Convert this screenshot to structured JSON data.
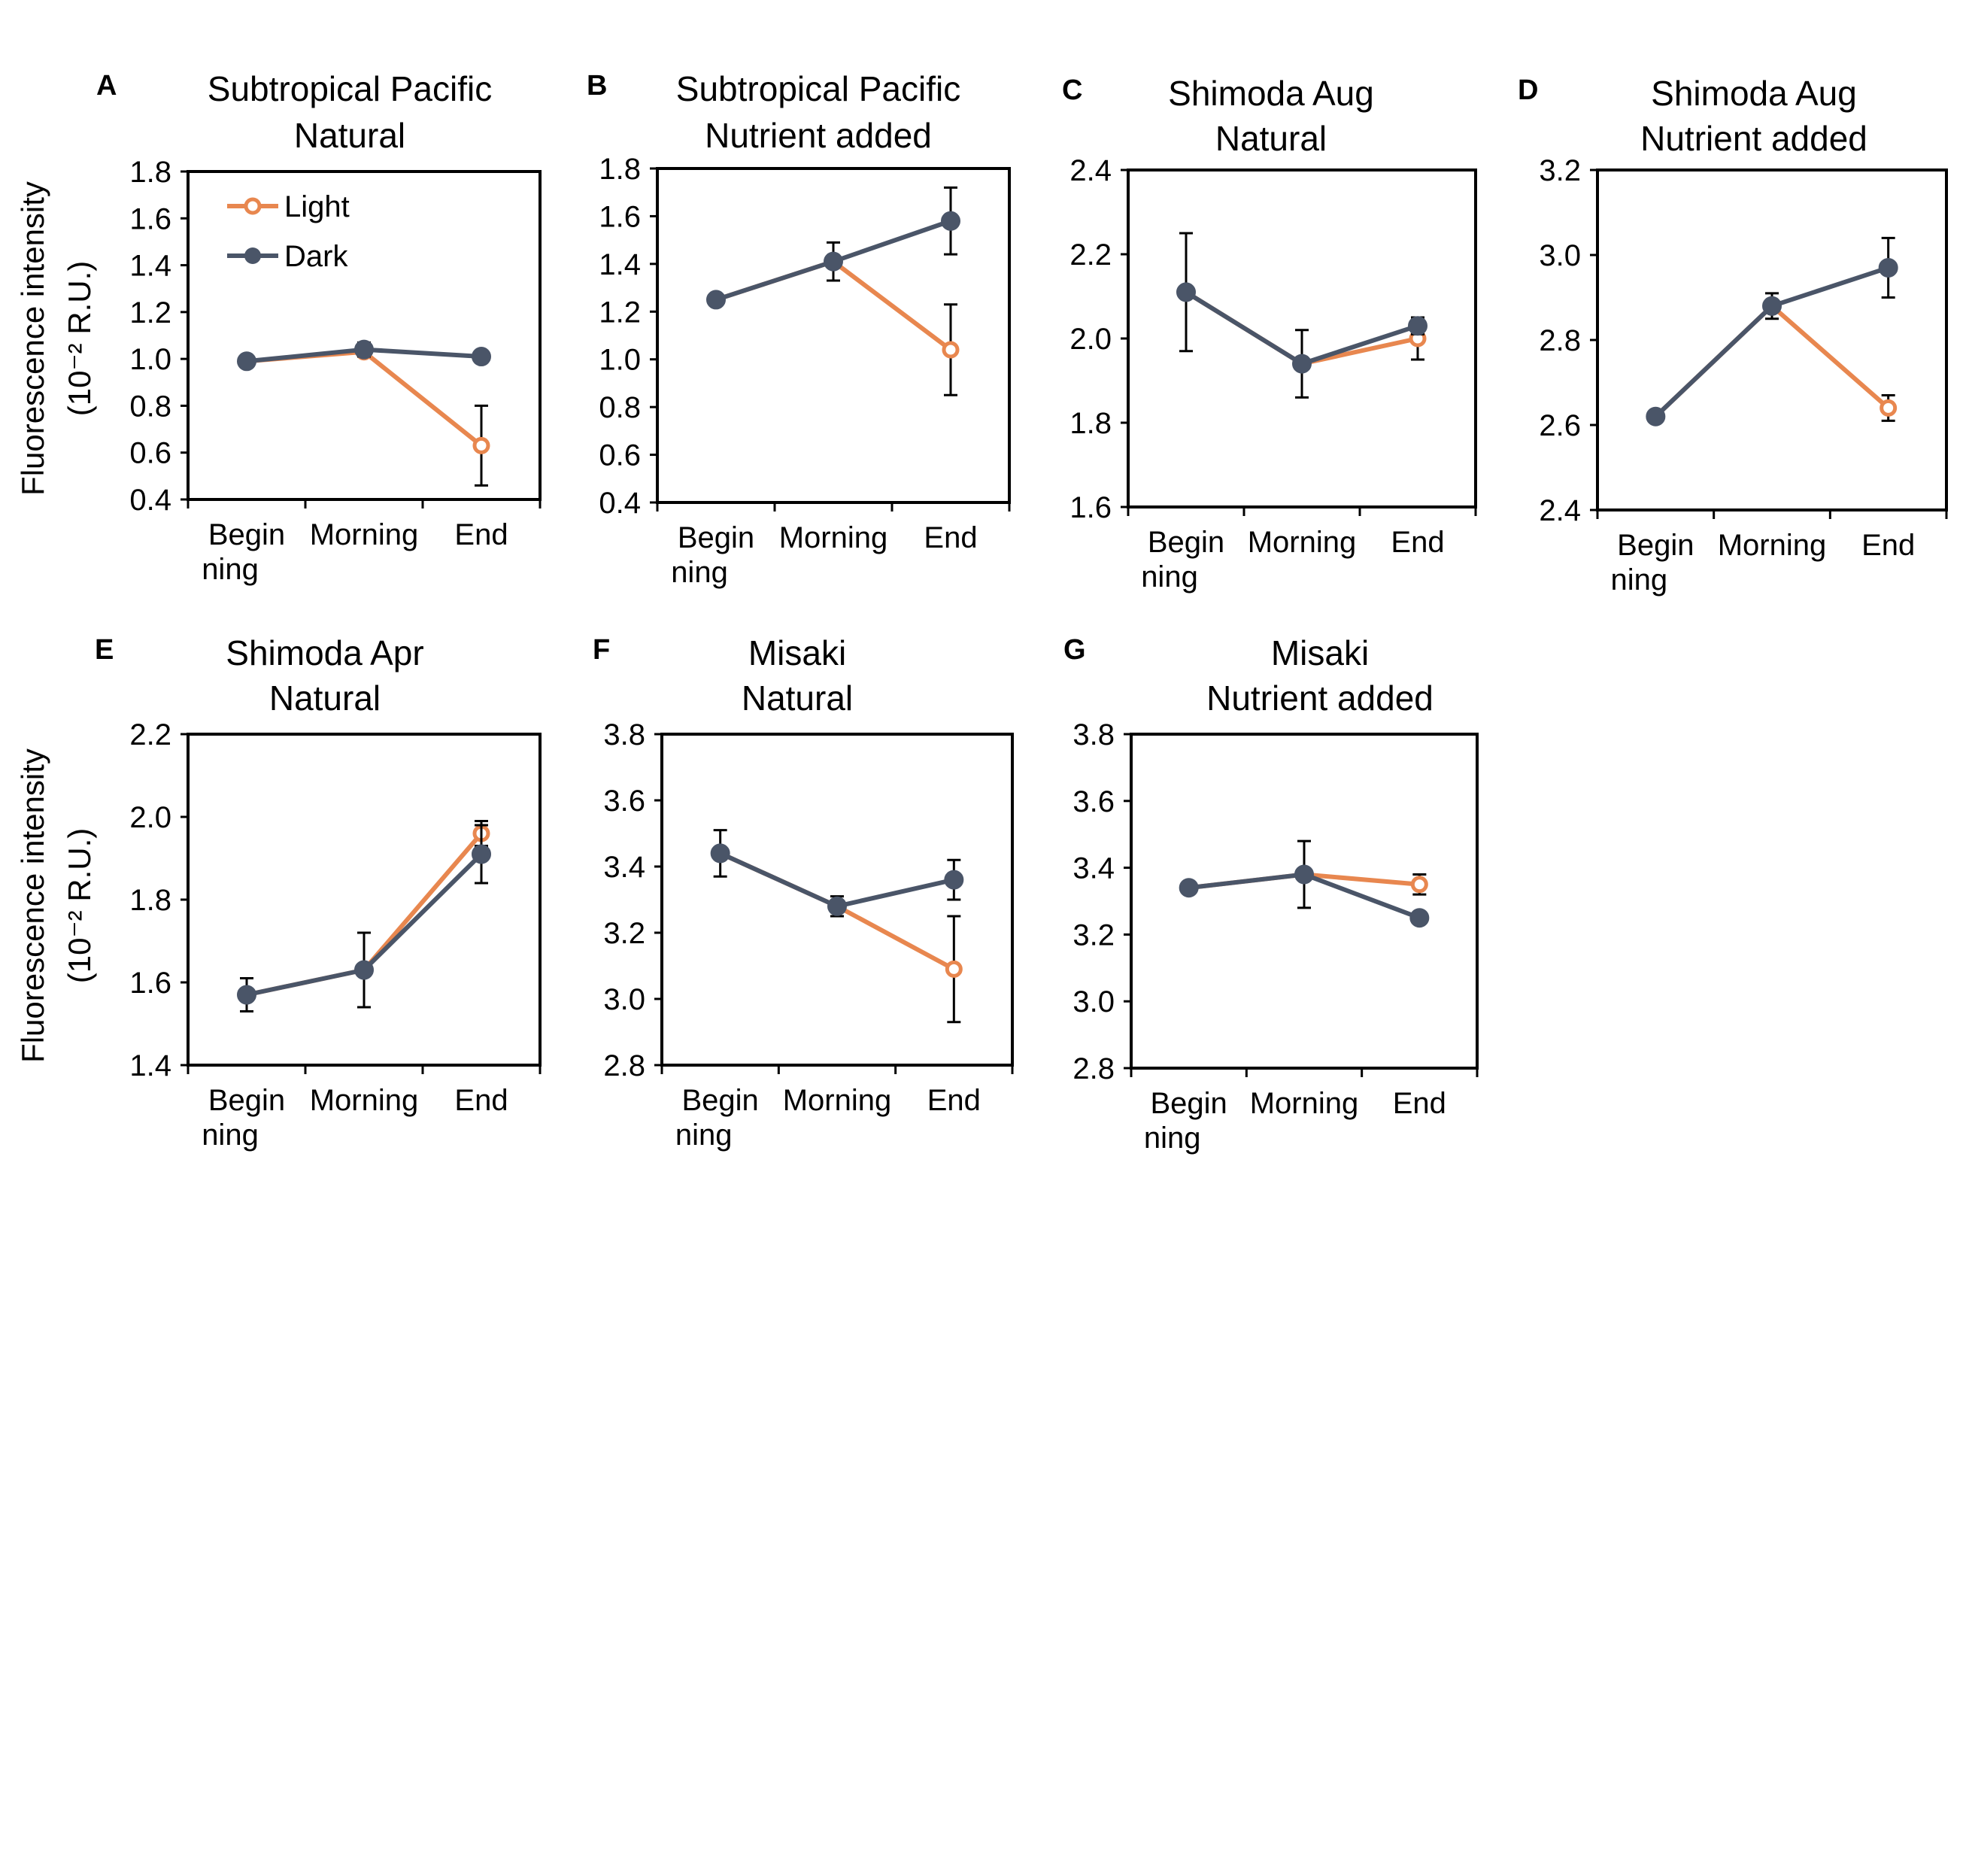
{
  "figure": {
    "y_axis_label": "Fluorescence intensity",
    "y_axis_unit": "(10⁻² R.U.)",
    "legend": [
      {
        "label": "Light",
        "marker": "open-circle"
      },
      {
        "label": "Dark",
        "marker": "filled-circle"
      }
    ]
  },
  "colors": {
    "light": "#e8874f",
    "dark": "#4a5568",
    "axis": "#000000",
    "errorbar": "#000000"
  },
  "chart_data": [
    {
      "panel": "A",
      "type": "line",
      "title": [
        "Subtropical Pacific",
        "Natural"
      ],
      "categories": [
        "Begin\nning",
        "Morning",
        "End"
      ],
      "ylim": [
        0.4,
        1.8
      ],
      "yticks": [
        "0.4",
        "0.6",
        "0.8",
        "1.0",
        "1.2",
        "1.4",
        "1.6",
        "1.8"
      ],
      "legend_shown": true,
      "series": [
        {
          "name": "Light",
          "values": [
            0.99,
            1.03,
            0.63
          ],
          "err": [
            0,
            0,
            0.17
          ]
        },
        {
          "name": "Dark",
          "values": [
            0.99,
            1.04,
            1.01
          ],
          "err": [
            0,
            0.03,
            0
          ]
        }
      ]
    },
    {
      "panel": "B",
      "type": "line",
      "title": [
        "Subtropical Pacific",
        "Nutrient added"
      ],
      "categories": [
        "Begin\nning",
        "Morning",
        "End"
      ],
      "ylim": [
        0.4,
        1.8
      ],
      "yticks": [
        "0.4",
        "0.6",
        "0.8",
        "1.0",
        "1.2",
        "1.4",
        "1.6",
        "1.8"
      ],
      "series": [
        {
          "name": "Light",
          "values": [
            1.25,
            1.41,
            1.04
          ],
          "err": [
            0,
            0,
            0.19
          ]
        },
        {
          "name": "Dark",
          "values": [
            1.25,
            1.41,
            1.58
          ],
          "err": [
            0.02,
            0.08,
            0.14
          ]
        }
      ]
    },
    {
      "panel": "C",
      "type": "line",
      "title": [
        "Shimoda Aug",
        "Natural"
      ],
      "categories": [
        "Begin\nning",
        "Morning",
        "End"
      ],
      "ylim": [
        1.6,
        2.4
      ],
      "yticks": [
        "1.6",
        "1.8",
        "2.0",
        "2.2",
        "2.4"
      ],
      "series": [
        {
          "name": "Light",
          "values": [
            2.11,
            1.94,
            2.0
          ],
          "err": [
            0,
            0,
            0.05
          ]
        },
        {
          "name": "Dark",
          "values": [
            2.11,
            1.94,
            2.03
          ],
          "err": [
            0.14,
            0.08,
            0.02
          ]
        }
      ]
    },
    {
      "panel": "D",
      "type": "line",
      "title": [
        "Shimoda Aug",
        "Nutrient added"
      ],
      "categories": [
        "Begin\nning",
        "Morning",
        "End"
      ],
      "ylim": [
        2.4,
        3.2
      ],
      "yticks": [
        "2.4",
        "2.6",
        "2.8",
        "3.0",
        "3.2"
      ],
      "series": [
        {
          "name": "Light",
          "values": [
            2.62,
            2.88,
            2.64
          ],
          "err": [
            0,
            0,
            0.03
          ]
        },
        {
          "name": "Dark",
          "values": [
            2.62,
            2.88,
            2.97
          ],
          "err": [
            0.01,
            0.03,
            0.07
          ]
        }
      ]
    },
    {
      "panel": "E",
      "type": "line",
      "title": [
        "Shimoda Apr",
        "Natural"
      ],
      "categories": [
        "Begin\nning",
        "Morning",
        "End"
      ],
      "ylim": [
        1.4,
        2.2
      ],
      "yticks": [
        "1.4",
        "1.6",
        "1.8",
        "2.0",
        "2.2"
      ],
      "series": [
        {
          "name": "Light",
          "values": [
            1.57,
            1.63,
            1.96
          ],
          "err": [
            0,
            0,
            0.03
          ]
        },
        {
          "name": "Dark",
          "values": [
            1.57,
            1.63,
            1.91
          ],
          "err": [
            0.04,
            0.09,
            0.07
          ]
        }
      ]
    },
    {
      "panel": "F",
      "type": "line",
      "title": [
        "Misaki",
        "Natural"
      ],
      "categories": [
        "Begin\nning",
        "Morning",
        "End"
      ],
      "ylim": [
        2.8,
        3.8
      ],
      "yticks": [
        "2.8",
        "3.0",
        "3.2",
        "3.4",
        "3.6",
        "3.8"
      ],
      "series": [
        {
          "name": "Light",
          "values": [
            3.44,
            3.28,
            3.09
          ],
          "err": [
            0,
            0,
            0.16
          ]
        },
        {
          "name": "Dark",
          "values": [
            3.44,
            3.28,
            3.36
          ],
          "err": [
            0.07,
            0.03,
            0.06
          ]
        }
      ]
    },
    {
      "panel": "G",
      "type": "line",
      "title": [
        "Misaki",
        "Nutrient added"
      ],
      "categories": [
        "Begin\nning",
        "Morning",
        "End"
      ],
      "ylim": [
        2.8,
        3.8
      ],
      "yticks": [
        "2.8",
        "3.0",
        "3.2",
        "3.4",
        "3.6",
        "3.8"
      ],
      "series": [
        {
          "name": "Light",
          "values": [
            3.34,
            3.38,
            3.35
          ],
          "err": [
            0,
            0,
            0.03
          ]
        },
        {
          "name": "Dark",
          "values": [
            3.34,
            3.38,
            3.25
          ],
          "err": [
            0,
            0.1,
            0
          ]
        }
      ]
    }
  ]
}
